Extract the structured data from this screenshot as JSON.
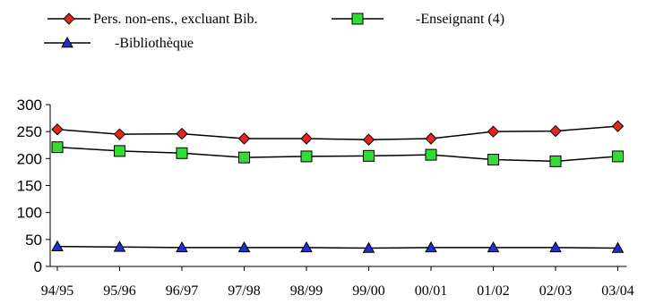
{
  "chart_data": {
    "type": "line",
    "categories": [
      "94/95",
      "95/96",
      "96/97",
      "97/98",
      "98/99",
      "99/00",
      "00/01",
      "01/02",
      "02/03",
      "03/04"
    ],
    "series": [
      {
        "name": "Pers. non-ens., excluant Bib.",
        "marker": "diamond",
        "color": "#e8261f",
        "values": [
          254,
          245,
          246,
          237,
          237,
          235,
          237,
          250,
          251,
          260
        ]
      },
      {
        "name": "-Enseignant (4)",
        "marker": "square",
        "color": "#33dd33",
        "values": [
          221,
          214,
          210,
          202,
          204,
          205,
          207,
          198,
          195,
          204
        ]
      },
      {
        "name": "-Bibliothèque",
        "marker": "triangle",
        "color": "#1f2fd0",
        "values": [
          37,
          36,
          35,
          35,
          35,
          34,
          35,
          35,
          35,
          34
        ]
      }
    ],
    "ylim": [
      0,
      300
    ],
    "yticks": [
      "0",
      "50",
      "100",
      "150",
      "200",
      "250",
      "300"
    ],
    "grid": false,
    "legend_position": "top-left"
  }
}
